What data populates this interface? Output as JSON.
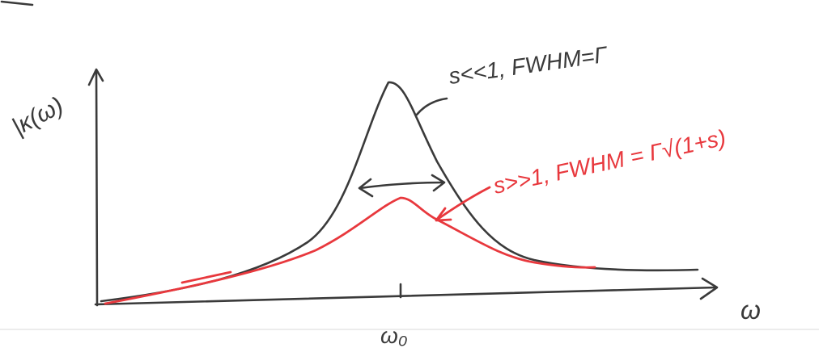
{
  "axes": {
    "y_label": "|κ(ω)",
    "x_label": "ω",
    "tick_label": "ω₀"
  },
  "annotations": [
    {
      "text": "s<<1, FWHM=Γ"
    },
    {
      "text": "s>>1, FWHM = Γ√(1+s)"
    }
  ]
}
